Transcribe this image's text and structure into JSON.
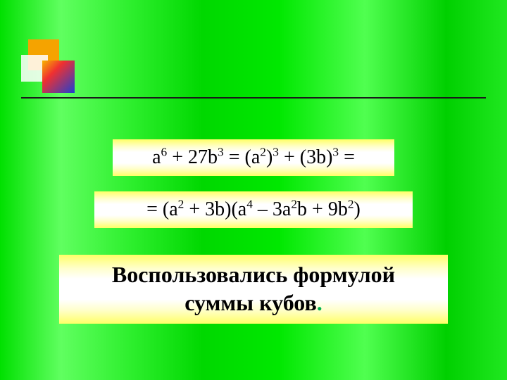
{
  "slide": {
    "background": {
      "gradient_direction": "horizontal",
      "colors": [
        "#00e000",
        "#60ff60",
        "#30f030",
        "#00d800",
        "#00e800",
        "#50ff50",
        "#00d000",
        "#20e820"
      ]
    },
    "decor_squares": {
      "orange": "#f5a300",
      "white": "rgba(255,255,255,0.85)",
      "blue_gradient": [
        "#f8b400",
        "#f03030",
        "#2040d0"
      ]
    },
    "rule_color": "#1a1a1a",
    "text_box_gradient": [
      "#ffff66",
      "#ffffcc",
      "#ffffff",
      "#ffffff",
      "#ffffcc",
      "#ffff66"
    ],
    "formula_fontsize_pt": 28,
    "caption_fontsize_pt": 32
  },
  "f1": {
    "a": "a",
    "e6": "6",
    "plus27b": " + 27b",
    "e3": "3",
    "eq_open": " =  (a",
    "e2": "2",
    "close_p": ")",
    "e3b": "3",
    "plus_3b": " +  (3b)",
    "e3c": "3",
    "eq_end": " ="
  },
  "f2": {
    "eq_open": "= (a",
    "e2": "2",
    "plus3b_open": " + 3b)(a",
    "e4": "4",
    "minus3a": " – 3a",
    "e2b": "2",
    "b_plus9b": "b + 9b",
    "e2c": "2",
    "close": ")"
  },
  "caption": {
    "line1": "Воспользовались формулой",
    "line2": "суммы кубов",
    "dot": "."
  }
}
